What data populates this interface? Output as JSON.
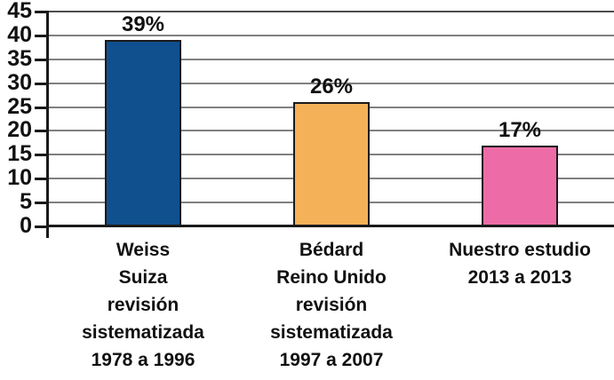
{
  "chart_data": {
    "type": "bar",
    "title": "",
    "xlabel": "",
    "ylabel": "",
    "categories": [
      [
        "Weiss",
        "Suiza",
        "revisión",
        "sistematizada",
        "1978 a 1996"
      ],
      [
        "Bédard",
        "Reino Unido",
        "revisión",
        "sistematizada",
        "1997 a 2007"
      ],
      [
        "Nuestro estudio",
        "2013 a 2013"
      ]
    ],
    "values": [
      39,
      26,
      17
    ],
    "value_labels": [
      "39%",
      "26%",
      "17%"
    ],
    "bar_colors": [
      "#10508e",
      "#f4b157",
      "#ed6ca7"
    ],
    "ylim": [
      0,
      45
    ],
    "yticks": [
      0,
      5,
      10,
      15,
      20,
      25,
      30,
      35,
      40,
      45
    ],
    "grid": "horizontal",
    "legend": "none",
    "colors": {
      "gridline": "#808080",
      "axis": "#1a1a1a",
      "background": "#ffffff",
      "text": "#111111"
    }
  }
}
